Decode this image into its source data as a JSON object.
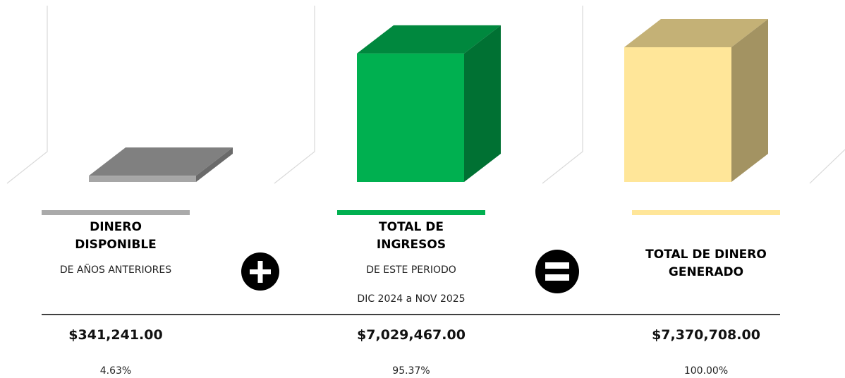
{
  "chart_data": {
    "type": "bar",
    "categories": [
      "DINERO DISPONIBLE",
      "TOTAL DE INGRESOS",
      "TOTAL DE DINERO GENERADO"
    ],
    "subtitles": [
      "DE AÑOS ANTERIORES",
      "DE ESTE PERIODO",
      null
    ],
    "period": "DIC 2024 a NOV 2025",
    "values": [
      341241,
      7029467,
      7370708
    ],
    "value_labels": [
      "$341,241.00",
      "$7,029,467.00",
      "$7,370,708.00"
    ],
    "shares": [
      4.63,
      95.37,
      100
    ],
    "share_labels": [
      "4.63%",
      "95.37%",
      "100.00%"
    ],
    "colors": [
      "#a6a6a6",
      "#00b050",
      "#ffe699"
    ],
    "ylim": [
      0,
      7370708
    ]
  }
}
